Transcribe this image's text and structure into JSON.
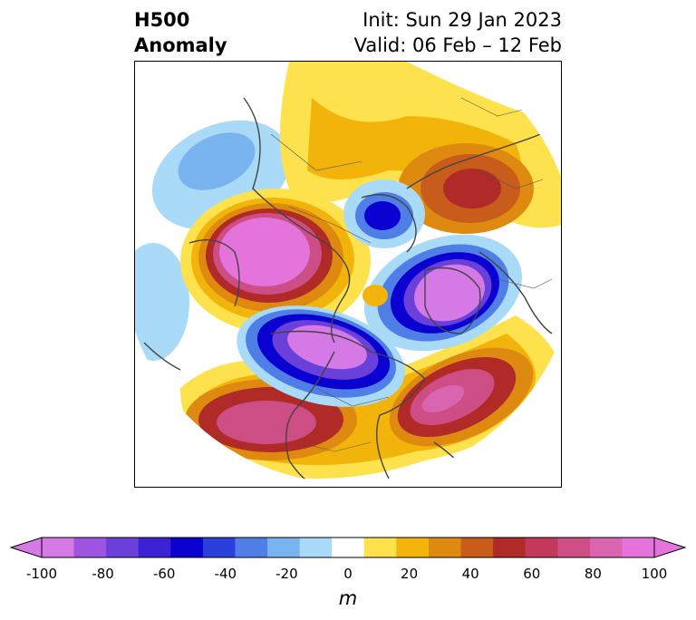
{
  "title": {
    "left_line1": "H500",
    "left_line2": "Anomaly",
    "right_line1": "Init: Sun 29 Jan 2023",
    "right_line2": "Valid: 06 Feb – 12 Feb"
  },
  "colorbar": {
    "unit": "m",
    "ticks": [
      "-100",
      "-80",
      "-60",
      "-40",
      "-20",
      "0",
      "20",
      "40",
      "60",
      "80",
      "100"
    ],
    "colors": [
      "#d479e6",
      "#9d55e0",
      "#6b3fd9",
      "#3b22d3",
      "#0a00cf",
      "#2b3fdc",
      "#4f7fe6",
      "#79b3f0",
      "#a9dbf9",
      "#ffffff",
      "#fde24e",
      "#f2b40a",
      "#de8a10",
      "#c85c1a",
      "#b02a28",
      "#c2395c",
      "#cd4d85",
      "#d964b0",
      "#e473dc"
    ]
  },
  "map": {
    "projection": "north polar stereographic",
    "features": [
      "negative anomaly over eastern Canada / Hudson Bay",
      "positive anomaly over Alaska and Bering Sea",
      "positive anomaly over eastern United States and Atlantic",
      "negative anomaly over Greenland/Arctic",
      "positive anomaly over Scandinavia/Barents region",
      "positive anomaly over northern Europe"
    ]
  }
}
